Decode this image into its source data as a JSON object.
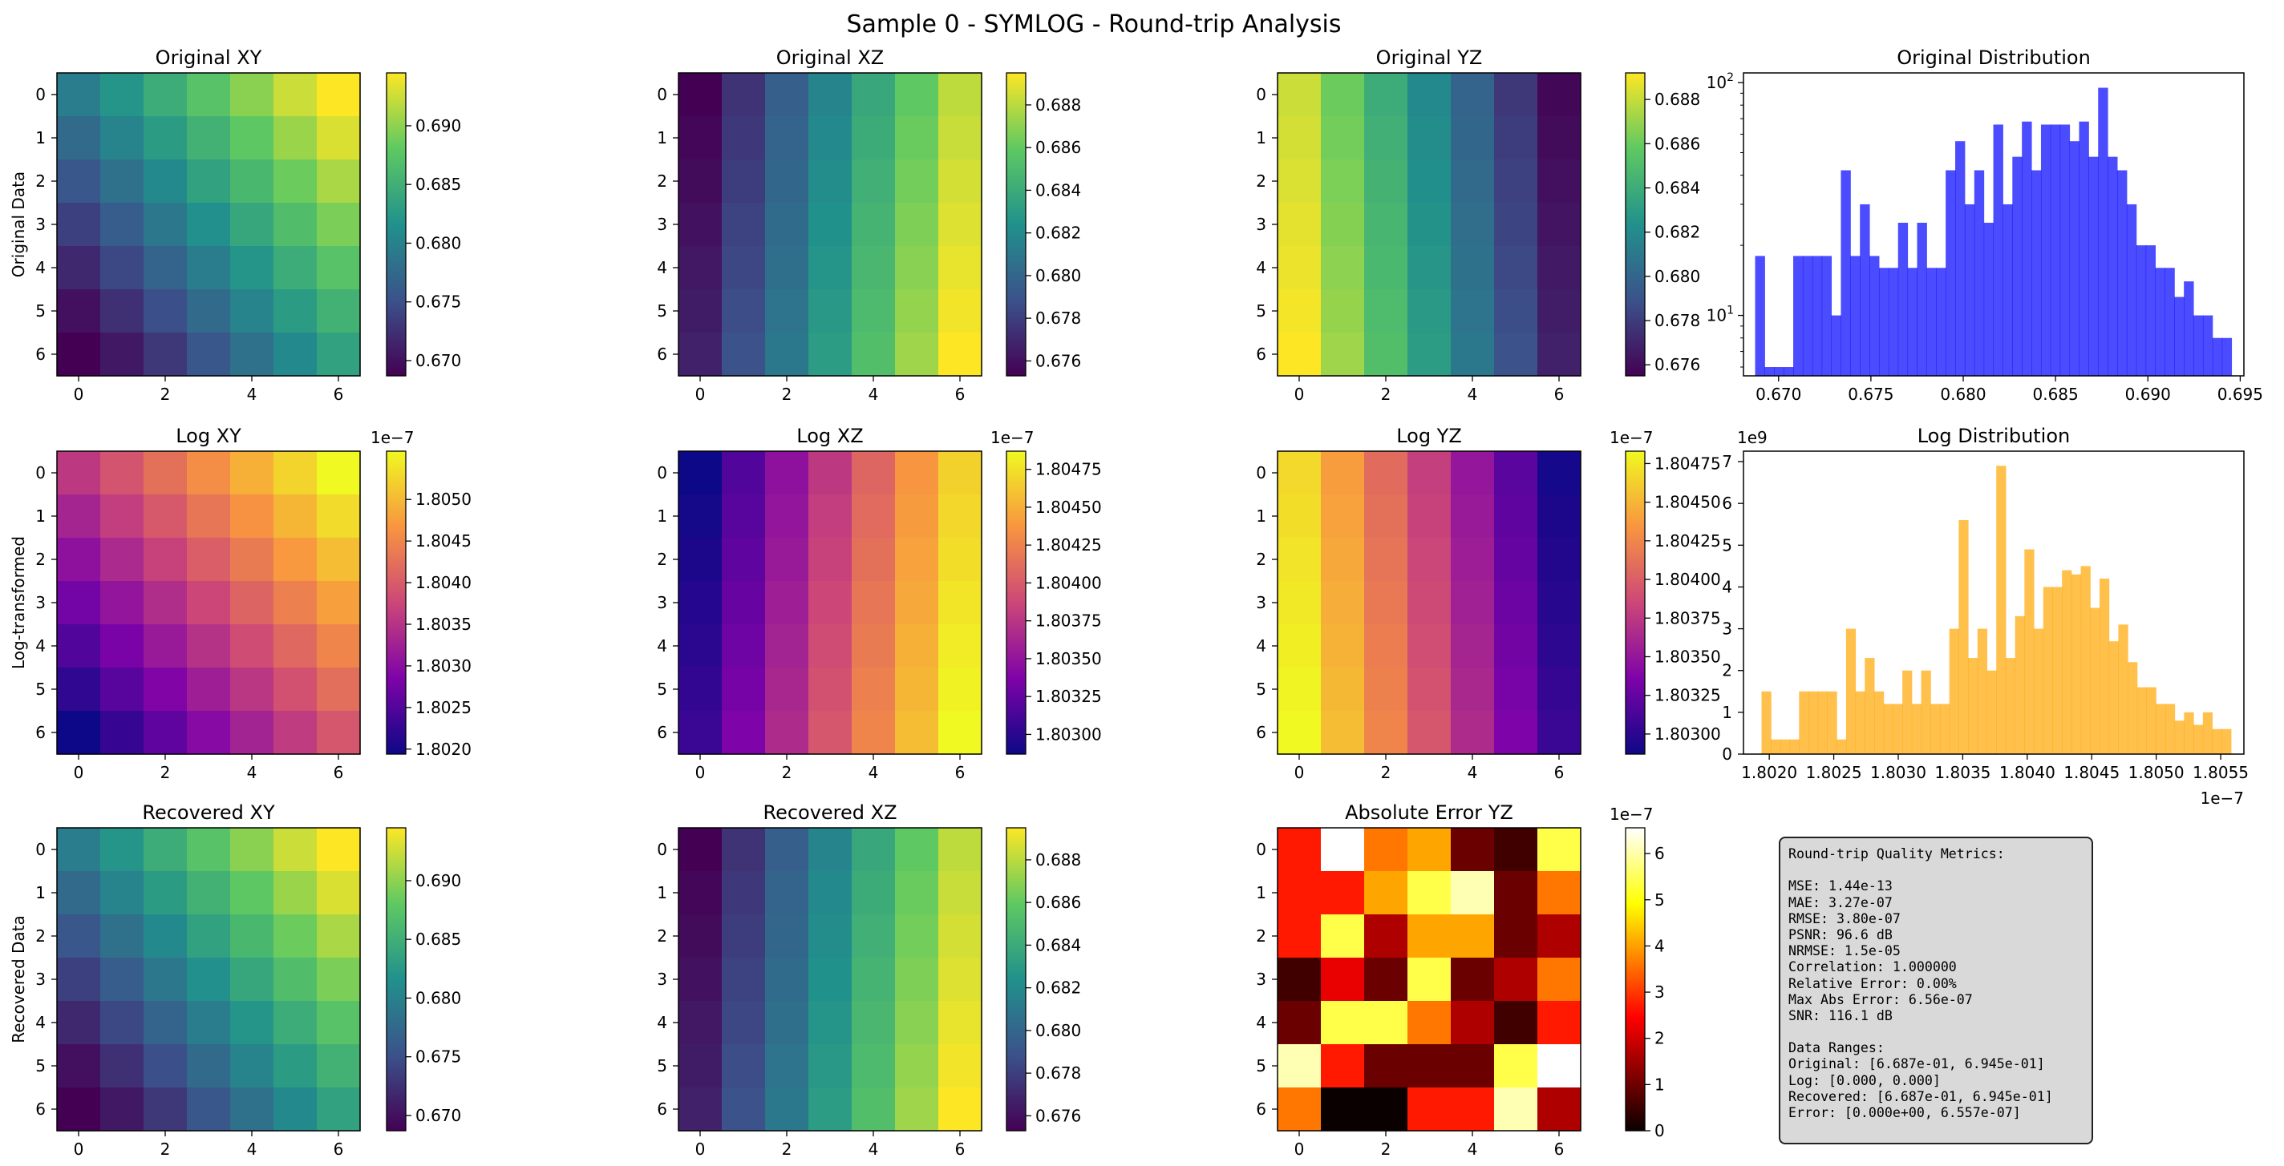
{
  "suptitle": "Sample 0 - SYMLOG - Round-trip Analysis",
  "row_labels": [
    "Original Data",
    "Log-transformed",
    "Recovered Data"
  ],
  "chart_data": [
    {
      "type": "heatmap",
      "title": "Original XY",
      "cmap": "viridis",
      "matrix_shape": [
        7,
        7
      ],
      "x_ticks": [
        "0",
        "2",
        "4",
        "6"
      ],
      "y_ticks": [
        "0",
        "1",
        "2",
        "3",
        "4",
        "5",
        "6"
      ],
      "colorbar": {
        "range": [
          0.6687,
          0.6945
        ],
        "ticks": [
          "0.670",
          "0.675",
          "0.680",
          "0.685",
          "0.690"
        ],
        "tick_values": [
          0.67,
          0.675,
          0.68,
          0.685,
          0.69
        ],
        "offset": ""
      }
    },
    {
      "type": "heatmap",
      "title": "Original XZ",
      "cmap": "viridis",
      "matrix_shape": [
        7,
        7
      ],
      "x_ticks": [
        "0",
        "2",
        "4",
        "6"
      ],
      "y_ticks": [
        "0",
        "1",
        "2",
        "3",
        "4",
        "5",
        "6"
      ],
      "colorbar": {
        "range": [
          0.6753,
          0.6895
        ],
        "ticks": [
          "0.676",
          "0.678",
          "0.680",
          "0.682",
          "0.684",
          "0.686",
          "0.688"
        ],
        "tick_values": [
          0.676,
          0.678,
          0.68,
          0.682,
          0.684,
          0.686,
          0.688
        ],
        "offset": ""
      }
    },
    {
      "type": "heatmap",
      "title": "Original YZ",
      "cmap": "viridis",
      "matrix_shape": [
        7,
        7
      ],
      "x_ticks": [
        "0",
        "2",
        "4",
        "6"
      ],
      "y_ticks": [
        "0",
        "1",
        "2",
        "3",
        "4",
        "5",
        "6"
      ],
      "colorbar": {
        "range": [
          0.6755,
          0.6892
        ],
        "ticks": [
          "0.676",
          "0.678",
          "0.680",
          "0.682",
          "0.684",
          "0.686",
          "0.688"
        ],
        "tick_values": [
          0.676,
          0.678,
          0.68,
          0.682,
          0.684,
          0.686,
          0.688
        ],
        "offset": ""
      }
    },
    {
      "type": "bar",
      "subtype": "histogram",
      "title": "Original Distribution",
      "color": "#0000ff",
      "y_scale": "log",
      "xlim": [
        0.6681,
        0.6952
      ],
      "ylim": [
        5.5,
        110
      ],
      "x_ticks": [
        "0.670",
        "0.675",
        "0.680",
        "0.685",
        "0.690",
        "0.695"
      ],
      "x_tick_values": [
        0.67,
        0.675,
        0.68,
        0.685,
        0.69,
        0.695
      ],
      "y_tick_labels": [
        {
          "value": 10,
          "base": "10",
          "exp": "1"
        },
        {
          "value": 100,
          "base": "10",
          "exp": "2"
        }
      ],
      "bin_start": 0.66873,
      "bin_width": 0.000516,
      "values": [
        18,
        6,
        6,
        6,
        18,
        18,
        18,
        18,
        10,
        42,
        18,
        30,
        18,
        16,
        16,
        25,
        16,
        25,
        16,
        16,
        42,
        56,
        30,
        42,
        25,
        66,
        30,
        48,
        68,
        42,
        66,
        66,
        66,
        56,
        68,
        48,
        95,
        48,
        42,
        30,
        20,
        20,
        16,
        16,
        12,
        14,
        10,
        10,
        8,
        8
      ]
    },
    {
      "type": "heatmap",
      "title": "Log XY",
      "cmap": "plasma",
      "matrix_shape": [
        7,
        7
      ],
      "x_ticks": [
        "0",
        "2",
        "4",
        "6"
      ],
      "y_ticks": [
        "0",
        "1",
        "2",
        "3",
        "4",
        "5",
        "6"
      ],
      "colorbar": {
        "range": [
          1.80194,
          1.80558
        ],
        "ticks": [
          "1.8020",
          "1.8025",
          "1.8030",
          "1.8035",
          "1.8040",
          "1.8045",
          "1.8050"
        ],
        "tick_values": [
          1.802,
          1.8025,
          1.803,
          1.8035,
          1.804,
          1.8045,
          1.805
        ],
        "offset": "1e−7"
      }
    },
    {
      "type": "heatmap",
      "title": "Log XZ",
      "cmap": "plasma",
      "matrix_shape": [
        7,
        7
      ],
      "x_ticks": [
        "0",
        "2",
        "4",
        "6"
      ],
      "y_ticks": [
        "0",
        "1",
        "2",
        "3",
        "4",
        "5",
        "6"
      ],
      "colorbar": {
        "range": [
          1.80287,
          1.80487
        ],
        "ticks": [
          "1.80300",
          "1.80325",
          "1.80350",
          "1.80375",
          "1.80400",
          "1.80425",
          "1.80450",
          "1.80475"
        ],
        "tick_values": [
          1.803,
          1.80325,
          1.8035,
          1.80375,
          1.804,
          1.80425,
          1.8045,
          1.80475
        ],
        "offset": "1e−7"
      }
    },
    {
      "type": "heatmap",
      "title": "Log YZ",
      "cmap": "plasma",
      "matrix_shape": [
        7,
        7
      ],
      "x_ticks": [
        "0",
        "2",
        "4",
        "6"
      ],
      "y_ticks": [
        "0",
        "1",
        "2",
        "3",
        "4",
        "5",
        "6"
      ],
      "colorbar": {
        "range": [
          1.80287,
          1.80483
        ],
        "ticks": [
          "1.80300",
          "1.80325",
          "1.80350",
          "1.80375",
          "1.80400",
          "1.80425",
          "1.80450",
          "1.80475"
        ],
        "tick_values": [
          1.803,
          1.80325,
          1.8035,
          1.80375,
          1.804,
          1.80425,
          1.8045,
          1.80475
        ],
        "offset": "1e−7"
      }
    },
    {
      "type": "bar",
      "subtype": "histogram",
      "title": "Log Distribution",
      "color": "#ffa500",
      "y_scale": "linear",
      "xlim": [
        1.8018,
        1.80568
      ],
      "ylim": [
        0,
        7.25
      ],
      "x_ticks": [
        "1.8020",
        "1.8025",
        "1.8030",
        "1.8035",
        "1.8040",
        "1.8045",
        "1.8050",
        "1.8055"
      ],
      "x_tick_values": [
        1.802,
        1.8025,
        1.803,
        1.8035,
        1.804,
        1.8045,
        1.805,
        1.8055
      ],
      "x_offset": "1e−7",
      "y_offset": "1e9",
      "y_ticks": [
        "0",
        "1",
        "2",
        "3",
        "4",
        "5",
        "6",
        "7"
      ],
      "y_tick_values": [
        0,
        1,
        2,
        3,
        4,
        5,
        6,
        7
      ],
      "bin_start": 1.80194,
      "bin_width": 7.28e-05,
      "values": [
        1.5,
        0.35,
        0.35,
        0.35,
        1.5,
        1.5,
        1.5,
        1.5,
        0.35,
        3.0,
        1.5,
        2.3,
        1.5,
        1.2,
        1.2,
        2.0,
        1.2,
        2.0,
        1.2,
        1.2,
        3.0,
        5.6,
        2.3,
        3.0,
        2.0,
        6.9,
        2.3,
        3.3,
        4.9,
        3.0,
        4.0,
        4.0,
        4.4,
        4.3,
        4.5,
        3.5,
        4.2,
        2.7,
        3.1,
        2.2,
        1.6,
        1.6,
        1.2,
        1.2,
        0.8,
        1.0,
        0.7,
        1.0,
        0.6,
        0.6
      ]
    },
    {
      "type": "heatmap",
      "title": "Recovered XY",
      "cmap": "viridis",
      "matrix_shape": [
        7,
        7
      ],
      "x_ticks": [
        "0",
        "2",
        "4",
        "6"
      ],
      "y_ticks": [
        "0",
        "1",
        "2",
        "3",
        "4",
        "5",
        "6"
      ],
      "colorbar": {
        "range": [
          0.6687,
          0.6945
        ],
        "ticks": [
          "0.670",
          "0.675",
          "0.680",
          "0.685",
          "0.690"
        ],
        "tick_values": [
          0.67,
          0.675,
          0.68,
          0.685,
          0.69
        ],
        "offset": ""
      }
    },
    {
      "type": "heatmap",
      "title": "Recovered XZ",
      "cmap": "viridis",
      "matrix_shape": [
        7,
        7
      ],
      "x_ticks": [
        "0",
        "2",
        "4",
        "6"
      ],
      "y_ticks": [
        "0",
        "1",
        "2",
        "3",
        "4",
        "5",
        "6"
      ],
      "colorbar": {
        "range": [
          0.6753,
          0.6895
        ],
        "ticks": [
          "0.676",
          "0.678",
          "0.680",
          "0.682",
          "0.684",
          "0.686",
          "0.688"
        ],
        "tick_values": [
          0.676,
          0.678,
          0.68,
          0.682,
          0.684,
          0.686,
          0.688
        ],
        "offset": ""
      }
    },
    {
      "type": "heatmap",
      "title": "Absolute Error YZ",
      "cmap": "hot",
      "matrix_shape": [
        7,
        7
      ],
      "x_ticks": [
        "0",
        "2",
        "4",
        "6"
      ],
      "y_ticks": [
        "0",
        "1",
        "2",
        "3",
        "4",
        "5",
        "6"
      ],
      "colorbar": {
        "range": [
          0,
          6.557
        ],
        "ticks": [
          "0",
          "1",
          "2",
          "3",
          "4",
          "5",
          "6"
        ],
        "tick_values": [
          0,
          1,
          2,
          3,
          4,
          5,
          6
        ],
        "offset": "1e−7"
      },
      "values": [
        [
          2.4,
          6.557,
          3.2,
          3.6,
          0.9,
          0.5,
          5.0
        ],
        [
          2.4,
          2.4,
          3.6,
          5.0,
          5.9,
          0.9,
          3.2
        ],
        [
          2.4,
          5.0,
          1.5,
          3.6,
          3.6,
          0.9,
          1.5
        ],
        [
          0.5,
          2.0,
          0.9,
          5.0,
          0.9,
          1.5,
          3.2
        ],
        [
          0.9,
          5.0,
          5.0,
          3.2,
          1.5,
          0.5,
          2.4
        ],
        [
          5.9,
          2.4,
          0.9,
          0.9,
          0.9,
          5.0,
          6.557
        ],
        [
          3.2,
          0.0,
          0.0,
          2.4,
          2.4,
          5.9,
          1.5
        ]
      ]
    }
  ],
  "metrics": {
    "lines": [
      "Round-trip Quality Metrics:",
      "",
      "MSE: 1.44e-13",
      "MAE: 3.27e-07",
      "RMSE: 3.80e-07",
      "PSNR: 96.6 dB",
      "NRMSE: 1.5e-05",
      "Correlation: 1.000000",
      "Relative Error: 0.00%",
      "Max Abs Error: 6.56e-07",
      "SNR: 116.1 dB",
      "",
      "Data Ranges:",
      "Original: [6.687e-01, 6.945e-01]",
      "Log: [0.000, 0.000]",
      "Recovered: [6.687e-01, 6.945e-01]",
      "Error: [0.000e+00, 6.557e-07]"
    ]
  }
}
